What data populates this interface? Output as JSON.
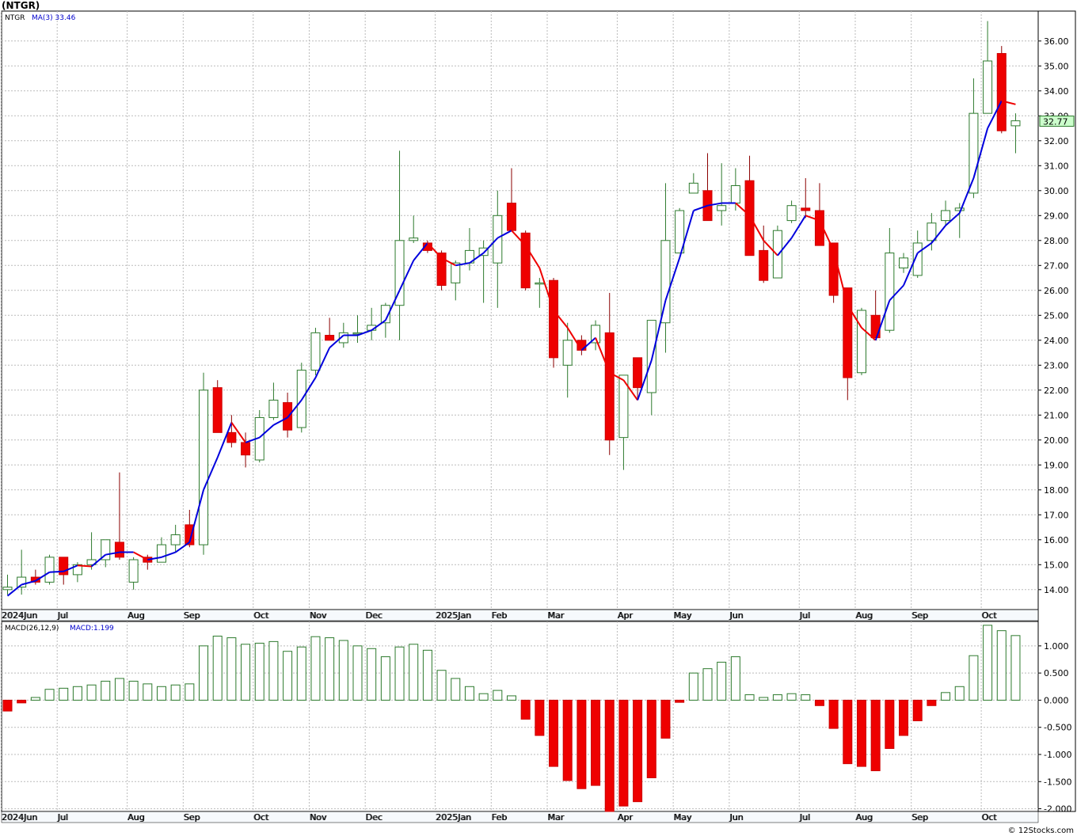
{
  "page": {
    "title": "(NTGR)",
    "footer": "© 12Stocks.com"
  },
  "chart_data": {
    "type": "candlestick",
    "ticker": "NTGR",
    "interval": "weekly",
    "ma": {
      "label": "MA(3)",
      "last": "33.46"
    },
    "last_price": "32.77",
    "price_axis": {
      "ylim": [
        13.2,
        37.2
      ],
      "ticks": [
        "14.00",
        "15.00",
        "16.00",
        "17.00",
        "18.00",
        "19.00",
        "20.00",
        "21.00",
        "22.00",
        "23.00",
        "24.00",
        "25.00",
        "26.00",
        "27.00",
        "28.00",
        "29.00",
        "30.00",
        "31.00",
        "32.00",
        "33.00",
        "34.00",
        "35.00",
        "36.00"
      ]
    },
    "x_labels": [
      {
        "i": 0,
        "t": "2024Jun"
      },
      {
        "i": 4,
        "t": "Jul"
      },
      {
        "i": 9,
        "t": "Aug"
      },
      {
        "i": 13,
        "t": "Sep"
      },
      {
        "i": 18,
        "t": "Oct"
      },
      {
        "i": 22,
        "t": "Nov"
      },
      {
        "i": 26,
        "t": "Dec"
      },
      {
        "i": 31,
        "t": "2025Jan"
      },
      {
        "i": 35,
        "t": "Feb"
      },
      {
        "i": 39,
        "t": "Mar"
      },
      {
        "i": 44,
        "t": "Apr"
      },
      {
        "i": 48,
        "t": "May"
      },
      {
        "i": 52,
        "t": "Jun"
      },
      {
        "i": 57,
        "t": "Jul"
      },
      {
        "i": 61,
        "t": "Aug"
      },
      {
        "i": 65,
        "t": "Sep"
      },
      {
        "i": 70,
        "t": "Oct"
      }
    ],
    "candles": [
      [
        14.0,
        14.6,
        13.8,
        14.1
      ],
      [
        14.1,
        15.6,
        13.8,
        14.5
      ],
      [
        14.5,
        14.8,
        14.2,
        14.3
      ],
      [
        14.3,
        15.4,
        14.2,
        15.3
      ],
      [
        15.3,
        15.3,
        14.2,
        14.6
      ],
      [
        14.6,
        15.1,
        14.3,
        15.0
      ],
      [
        15.0,
        16.3,
        14.8,
        15.2
      ],
      [
        15.2,
        16.0,
        14.9,
        16.0
      ],
      [
        15.9,
        18.7,
        15.2,
        15.3
      ],
      [
        14.3,
        15.3,
        14.0,
        15.2
      ],
      [
        15.3,
        15.4,
        14.8,
        15.1
      ],
      [
        15.1,
        16.1,
        15.1,
        15.8
      ],
      [
        15.8,
        16.6,
        15.5,
        16.2
      ],
      [
        16.6,
        17.2,
        15.7,
        15.8
      ],
      [
        15.8,
        22.7,
        15.4,
        22.0
      ],
      [
        22.1,
        22.4,
        20.3,
        20.3
      ],
      [
        20.3,
        21.0,
        19.7,
        19.9
      ],
      [
        19.9,
        20.3,
        18.9,
        19.4
      ],
      [
        19.2,
        21.2,
        19.1,
        20.9
      ],
      [
        20.9,
        22.3,
        20.8,
        21.6
      ],
      [
        21.5,
        21.9,
        20.1,
        20.4
      ],
      [
        20.5,
        23.1,
        20.3,
        22.8
      ],
      [
        22.8,
        24.5,
        22.6,
        24.3
      ],
      [
        24.2,
        24.9,
        24.0,
        24.0
      ],
      [
        23.9,
        24.7,
        23.7,
        24.3
      ],
      [
        24.3,
        25.0,
        23.9,
        24.3
      ],
      [
        24.4,
        25.3,
        24.0,
        24.6
      ],
      [
        24.7,
        25.5,
        24.1,
        25.4
      ],
      [
        25.4,
        31.6,
        24.0,
        28.0
      ],
      [
        28.0,
        29.0,
        27.9,
        28.1
      ],
      [
        27.9,
        28.0,
        27.5,
        27.6
      ],
      [
        27.5,
        27.6,
        26.0,
        26.2
      ],
      [
        26.3,
        27.2,
        25.6,
        27.1
      ],
      [
        27.1,
        28.5,
        26.8,
        27.6
      ],
      [
        27.4,
        28.0,
        25.5,
        27.7
      ],
      [
        27.1,
        30.0,
        25.3,
        29.0
      ],
      [
        29.5,
        30.9,
        28.4,
        28.4
      ],
      [
        28.3,
        28.4,
        26.0,
        26.1
      ],
      [
        26.3,
        26.5,
        25.3,
        26.3
      ],
      [
        26.4,
        26.5,
        22.9,
        23.3
      ],
      [
        23.0,
        24.7,
        21.7,
        24.0
      ],
      [
        24.0,
        24.2,
        23.4,
        23.6
      ],
      [
        23.9,
        24.8,
        23.6,
        24.6
      ],
      [
        24.3,
        25.9,
        19.4,
        20.0
      ],
      [
        20.1,
        22.6,
        18.8,
        22.6
      ],
      [
        23.3,
        23.3,
        21.6,
        22.1
      ],
      [
        21.9,
        24.8,
        21.0,
        24.8
      ],
      [
        24.7,
        30.3,
        23.5,
        28.0
      ],
      [
        27.5,
        29.3,
        27.5,
        29.2
      ],
      [
        29.9,
        30.7,
        29.9,
        30.3
      ],
      [
        30.0,
        31.5,
        28.8,
        28.8
      ],
      [
        29.2,
        31.1,
        28.6,
        29.4
      ],
      [
        29.5,
        30.9,
        29.2,
        30.2
      ],
      [
        30.4,
        31.4,
        27.5,
        27.4
      ],
      [
        27.6,
        28.6,
        26.3,
        26.4
      ],
      [
        26.5,
        28.6,
        26.5,
        28.4
      ],
      [
        28.8,
        29.6,
        28.7,
        29.4
      ],
      [
        29.3,
        30.5,
        28.9,
        29.2
      ],
      [
        29.2,
        30.3,
        27.8,
        27.8
      ],
      [
        27.9,
        27.8,
        25.5,
        25.8
      ],
      [
        26.1,
        26.1,
        21.6,
        22.5
      ],
      [
        22.7,
        25.3,
        22.6,
        25.2
      ],
      [
        25.0,
        26.0,
        24.1,
        24.1
      ],
      [
        24.4,
        28.5,
        24.3,
        27.5
      ],
      [
        26.9,
        27.5,
        26.7,
        27.3
      ],
      [
        26.6,
        28.4,
        26.5,
        27.9
      ],
      [
        28.0,
        29.1,
        27.6,
        28.7
      ],
      [
        28.8,
        29.6,
        28.6,
        29.2
      ],
      [
        29.2,
        29.5,
        28.1,
        29.3
      ],
      [
        29.9,
        34.5,
        29.7,
        33.1
      ],
      [
        33.1,
        36.8,
        33.1,
        35.2
      ],
      [
        35.5,
        35.8,
        32.3,
        32.4
      ],
      [
        32.6,
        33.1,
        31.5,
        32.8
      ]
    ],
    "ma3": [
      13.75,
      14.2,
      14.35,
      14.7,
      14.73,
      14.97,
      14.93,
      15.4,
      15.5,
      15.5,
      15.2,
      15.3,
      15.5,
      15.9,
      18.0,
      19.3,
      20.7,
      19.9,
      20.1,
      20.6,
      20.9,
      21.6,
      22.5,
      23.7,
      24.2,
      24.2,
      24.4,
      24.8,
      26.0,
      27.2,
      27.9,
      27.3,
      27.0,
      27.1,
      27.5,
      28.1,
      28.4,
      27.8,
      26.9,
      25.2,
      24.5,
      23.6,
      24.1,
      22.7,
      22.4,
      21.6,
      23.2,
      25.6,
      27.3,
      29.2,
      29.4,
      29.5,
      29.5,
      29.0,
      28.0,
      27.4,
      28.1,
      29.0,
      28.8,
      27.6,
      25.4,
      24.5,
      24.0,
      25.6,
      26.2,
      27.5,
      27.9,
      28.6,
      29.1,
      30.5,
      32.5,
      33.6,
      33.46
    ],
    "macd": {
      "label": "MACD(26,12,9)",
      "value_label": "MACD:1.199",
      "ylim": [
        -2.05,
        1.45
      ],
      "ticks": [
        "1.000",
        "0.500",
        "0.000",
        "-0.500",
        "-1.000",
        "-1.500",
        "-2.000"
      ],
      "hist": [
        -0.2,
        -0.05,
        0.05,
        0.2,
        0.22,
        0.25,
        0.28,
        0.35,
        0.4,
        0.35,
        0.3,
        0.25,
        0.28,
        0.3,
        1.0,
        1.18,
        1.15,
        1.03,
        1.05,
        1.08,
        0.9,
        0.98,
        1.17,
        1.15,
        1.1,
        1.0,
        0.95,
        0.8,
        0.98,
        1.03,
        0.92,
        0.55,
        0.4,
        0.25,
        0.12,
        0.18,
        0.08,
        -0.35,
        -0.65,
        -1.22,
        -1.48,
        -1.63,
        -1.57,
        -2.05,
        -1.95,
        -1.87,
        -1.43,
        -0.7,
        -0.04,
        0.5,
        0.58,
        0.7,
        0.8,
        0.1,
        0.05,
        0.1,
        0.12,
        0.1,
        -0.1,
        -0.52,
        -1.17,
        -1.22,
        -1.3,
        -0.89,
        -0.65,
        -0.38,
        -0.1,
        0.14,
        0.25,
        0.82,
        1.38,
        1.28,
        1.19
      ]
    }
  }
}
